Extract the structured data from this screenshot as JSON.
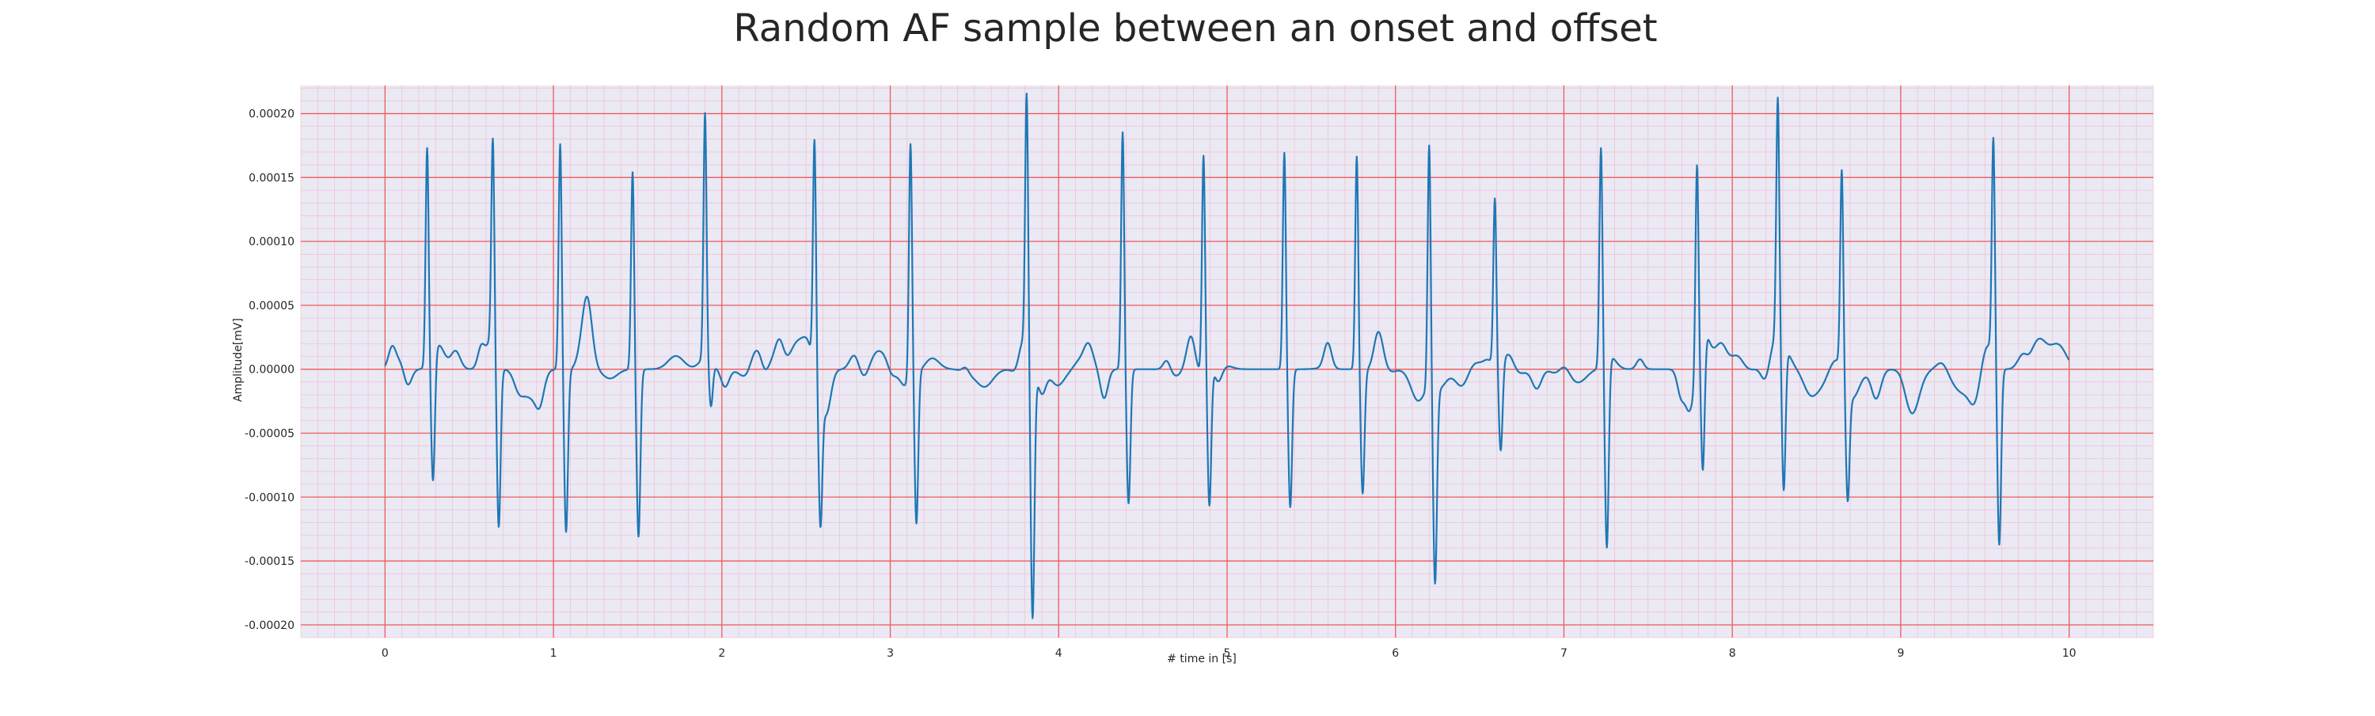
{
  "chart_data": {
    "type": "line",
    "title": "Random AF sample between an onset and offset",
    "xlabel": "# time in [s]",
    "ylabel": "Amplitude[mV]",
    "xlim": [
      -0.5,
      10.5
    ],
    "ylim": [
      -0.00021,
      0.000222
    ],
    "x_ticks": [
      0,
      1,
      2,
      3,
      4,
      5,
      6,
      7,
      8,
      9,
      10
    ],
    "x_tick_labels": [
      "0",
      "1",
      "2",
      "3",
      "4",
      "5",
      "6",
      "7",
      "8",
      "9",
      "10"
    ],
    "y_ticks": [
      0.0002,
      0.00015,
      0.0001,
      5e-05,
      0.0,
      -5e-05,
      -0.0001,
      -0.00015,
      -0.0002
    ],
    "y_tick_labels": [
      "0.00020",
      "0.00015",
      "0.00010",
      "0.00005",
      "0.00000",
      "-0.00005",
      "-0.00010",
      "-0.00015",
      "-0.00020"
    ],
    "grid": true,
    "minor_grid": true,
    "colors": {
      "line": "#1f77b4",
      "plot_bg": "#eae9f4",
      "major_grid": "#f05a5a",
      "minor_grid": "#f2b8c8"
    },
    "series": [
      {
        "name": "",
        "beats": [
          {
            "t": 0.25,
            "peak": 0.00017,
            "trough": -0.0001
          },
          {
            "t": 0.64,
            "peak": 0.000162,
            "trough": -0.000128
          },
          {
            "t": 1.04,
            "peak": 0.000177,
            "trough": -0.000127
          },
          {
            "t": 1.47,
            "peak": 0.000155,
            "trough": -0.000131
          },
          {
            "t": 1.9,
            "peak": 0.000192,
            "trough": -3.5e-05
          },
          {
            "t": 2.55,
            "peak": 0.000178,
            "trough": -0.000108
          },
          {
            "t": 3.12,
            "peak": 0.000177,
            "trough": -0.000126
          },
          {
            "t": 3.81,
            "peak": 0.000202,
            "trough": -0.000194
          },
          {
            "t": 4.38,
            "peak": 0.000186,
            "trough": -0.000105
          },
          {
            "t": 4.86,
            "peak": 0.000167,
            "trough": -0.000112
          },
          {
            "t": 5.34,
            "peak": 0.00017,
            "trough": -0.000108
          },
          {
            "t": 5.77,
            "peak": 0.000167,
            "trough": -9.7e-05
          },
          {
            "t": 6.2,
            "peak": 0.000191,
            "trough": -0.000152
          },
          {
            "t": 6.59,
            "peak": 0.000131,
            "trough": -6.8e-05
          },
          {
            "t": 7.22,
            "peak": 0.000171,
            "trough": -0.000148
          },
          {
            "t": 7.79,
            "peak": 0.000161,
            "trough": -0.000106
          },
          {
            "t": 8.27,
            "peak": 0.000186,
            "trough": -0.000117
          },
          {
            "t": 8.65,
            "peak": 0.000157,
            "trough": -8.7e-05
          },
          {
            "t": 9.55,
            "peak": 0.00017,
            "trough": -0.00014
          }
        ]
      }
    ]
  }
}
